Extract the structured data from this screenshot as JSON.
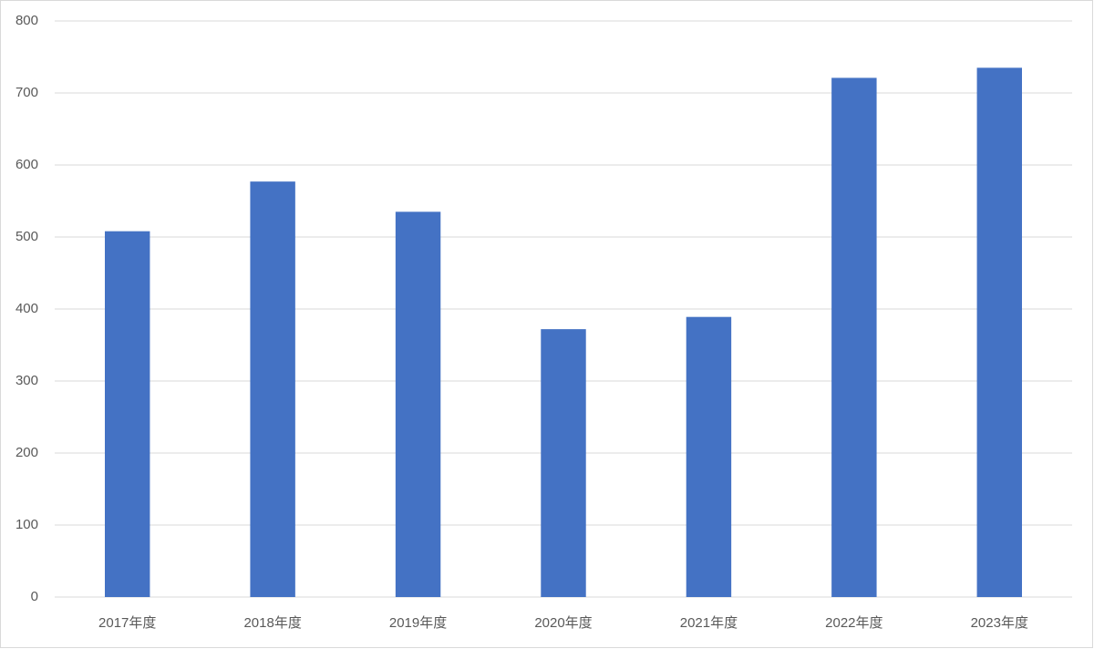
{
  "chart_data": {
    "type": "bar",
    "categories": [
      "2017年度",
      "2018年度",
      "2019年度",
      "2020年度",
      "2021年度",
      "2022年度",
      "2023年度"
    ],
    "values": [
      508,
      577,
      535,
      372,
      389,
      721,
      735
    ],
    "color": "#4472c4",
    "ylim": [
      0,
      800
    ],
    "yticks": [
      0,
      100,
      200,
      300,
      400,
      500,
      600,
      700,
      800
    ],
    "grid": true
  }
}
